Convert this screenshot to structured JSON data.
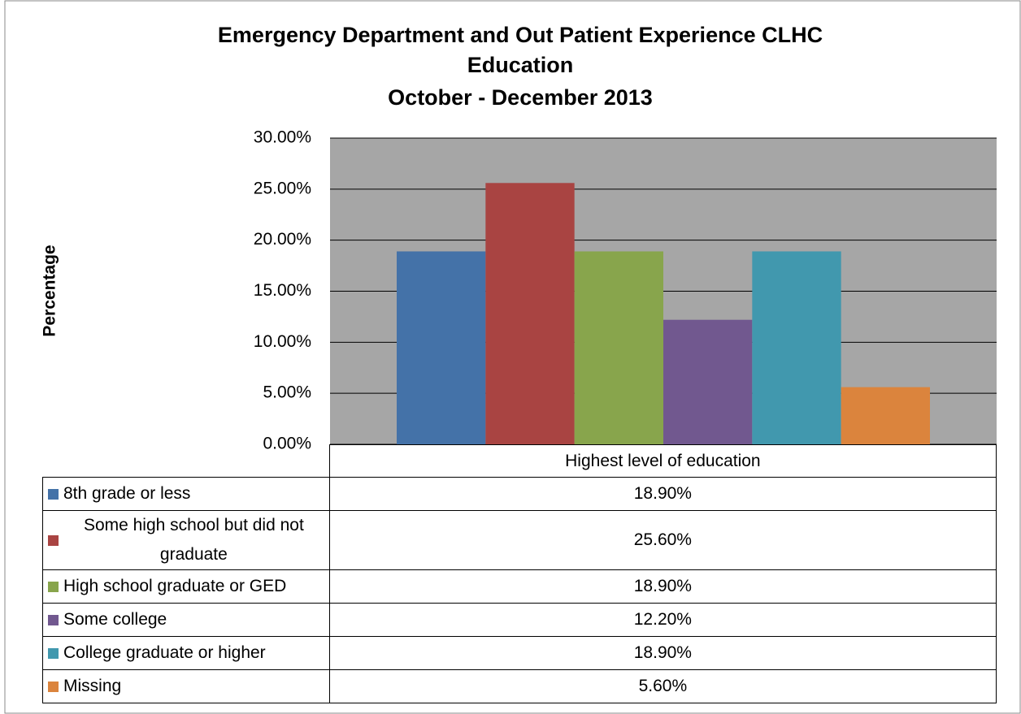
{
  "chart_data": {
    "type": "bar",
    "title": "Emergency Department and Out Patient Experience CLHC",
    "subtitle": "Education",
    "subtitle2": "October - December 2013",
    "y_label": "Percentage",
    "categories": [
      "Highest level of education"
    ],
    "series": [
      {
        "name": "8th grade or less",
        "color": "#4472a8",
        "values": [
          18.9
        ],
        "value_labels": [
          "18.90%"
        ]
      },
      {
        "name": "Some high school but did not graduate",
        "color": "#a94442",
        "values": [
          25.6
        ],
        "value_labels": [
          "25.60%"
        ]
      },
      {
        "name": "High school graduate or GED",
        "color": "#88a54c",
        "values": [
          18.9
        ],
        "value_labels": [
          "18.90%"
        ]
      },
      {
        "name": "Some college",
        "color": "#71588f",
        "values": [
          12.2
        ],
        "value_labels": [
          "12.20%"
        ]
      },
      {
        "name": "College graduate or higher",
        "color": "#4198ae",
        "values": [
          18.9
        ],
        "value_labels": [
          "18.90%"
        ]
      },
      {
        "name": "Missing",
        "color": "#db843d",
        "values": [
          5.6
        ],
        "value_labels": [
          "5.60%"
        ]
      }
    ],
    "ylim": [
      0,
      30
    ],
    "yticks": [
      {
        "value": 0,
        "label": "0.00%"
      },
      {
        "value": 5,
        "label": "5.00%"
      },
      {
        "value": 10,
        "label": "10.00%"
      },
      {
        "value": 15,
        "label": "15.00%"
      },
      {
        "value": 20,
        "label": "20.00%"
      },
      {
        "value": 25,
        "label": "25.00%"
      },
      {
        "value": 30,
        "label": "30.00%"
      }
    ],
    "grid": true
  }
}
